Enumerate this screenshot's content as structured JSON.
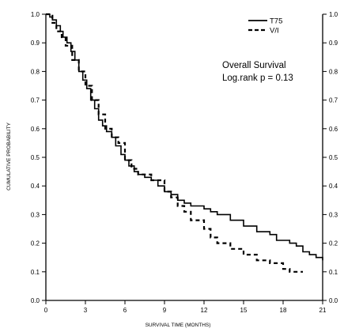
{
  "chart_data": {
    "type": "line",
    "title": "",
    "xlabel": "SURVIVAL TIME (MONTHS)",
    "ylabel": "CUMULATIVE PROBABILITY",
    "xlim": [
      0,
      21
    ],
    "ylim": [
      0.0,
      1.0
    ],
    "x_ticks": [
      0,
      3,
      6,
      9,
      12,
      15,
      18,
      21
    ],
    "y_ticks": [
      0.0,
      0.1,
      0.2,
      0.3,
      0.4,
      0.5,
      0.6,
      0.7,
      0.8,
      0.9,
      1.0
    ],
    "y_tick_labels": [
      "0.0",
      "0.1",
      "0.2",
      "0.3",
      "0.4",
      "0.5",
      "0.6",
      "0.7",
      "0.8",
      "0.9",
      "1.0"
    ],
    "right_axis_mirrored": true,
    "legend_position": "top-right",
    "grid": false,
    "annotations": [
      "Overall Survival",
      "Log.rank p = 0.13"
    ],
    "series": [
      {
        "name": "T75",
        "line_style": "solid",
        "color": "#000000",
        "step": true,
        "points": [
          [
            0,
            1.0
          ],
          [
            0.3,
            0.99
          ],
          [
            0.5,
            0.98
          ],
          [
            0.8,
            0.96
          ],
          [
            1.1,
            0.94
          ],
          [
            1.3,
            0.92
          ],
          [
            1.6,
            0.9
          ],
          [
            1.9,
            0.87
          ],
          [
            2.2,
            0.84
          ],
          [
            2.5,
            0.8
          ],
          [
            2.8,
            0.77
          ],
          [
            3.1,
            0.74
          ],
          [
            3.4,
            0.7
          ],
          [
            3.7,
            0.67
          ],
          [
            4.0,
            0.63
          ],
          [
            4.3,
            0.61
          ],
          [
            4.6,
            0.59
          ],
          [
            5.0,
            0.57
          ],
          [
            5.3,
            0.54
          ],
          [
            5.7,
            0.51
          ],
          [
            6.0,
            0.49
          ],
          [
            6.3,
            0.47
          ],
          [
            6.7,
            0.45
          ],
          [
            7.0,
            0.44
          ],
          [
            7.5,
            0.43
          ],
          [
            8.0,
            0.42
          ],
          [
            8.5,
            0.4
          ],
          [
            9.0,
            0.38
          ],
          [
            9.5,
            0.37
          ],
          [
            10.0,
            0.35
          ],
          [
            10.5,
            0.34
          ],
          [
            11.0,
            0.33
          ],
          [
            12.0,
            0.32
          ],
          [
            12.5,
            0.31
          ],
          [
            13.0,
            0.3
          ],
          [
            14.0,
            0.28
          ],
          [
            15.0,
            0.26
          ],
          [
            16.0,
            0.24
          ],
          [
            17.0,
            0.23
          ],
          [
            17.5,
            0.21
          ],
          [
            18.5,
            0.2
          ],
          [
            19.0,
            0.19
          ],
          [
            19.5,
            0.17
          ],
          [
            20.0,
            0.16
          ],
          [
            20.5,
            0.15
          ],
          [
            21.0,
            0.14
          ]
        ]
      },
      {
        "name": "V/I",
        "line_style": "dashed",
        "color": "#000000",
        "step": true,
        "points": [
          [
            0,
            1.0
          ],
          [
            0.5,
            0.97
          ],
          [
            0.8,
            0.94
          ],
          [
            1.2,
            0.92
          ],
          [
            1.5,
            0.89
          ],
          [
            2.0,
            0.84
          ],
          [
            2.5,
            0.8
          ],
          [
            3.0,
            0.75
          ],
          [
            3.5,
            0.7
          ],
          [
            4.0,
            0.65
          ],
          [
            4.5,
            0.6
          ],
          [
            5.0,
            0.57
          ],
          [
            5.5,
            0.55
          ],
          [
            6.0,
            0.49
          ],
          [
            6.5,
            0.46
          ],
          [
            7.0,
            0.44
          ],
          [
            8.0,
            0.42
          ],
          [
            9.0,
            0.38
          ],
          [
            9.5,
            0.36
          ],
          [
            10.0,
            0.33
          ],
          [
            10.5,
            0.31
          ],
          [
            11.0,
            0.28
          ],
          [
            12.0,
            0.25
          ],
          [
            12.5,
            0.22
          ],
          [
            13.0,
            0.2
          ],
          [
            14.0,
            0.18
          ],
          [
            15.0,
            0.16
          ],
          [
            16.0,
            0.14
          ],
          [
            17.0,
            0.13
          ],
          [
            18.0,
            0.11
          ],
          [
            18.5,
            0.1
          ],
          [
            19.5,
            0.1
          ]
        ]
      }
    ]
  }
}
